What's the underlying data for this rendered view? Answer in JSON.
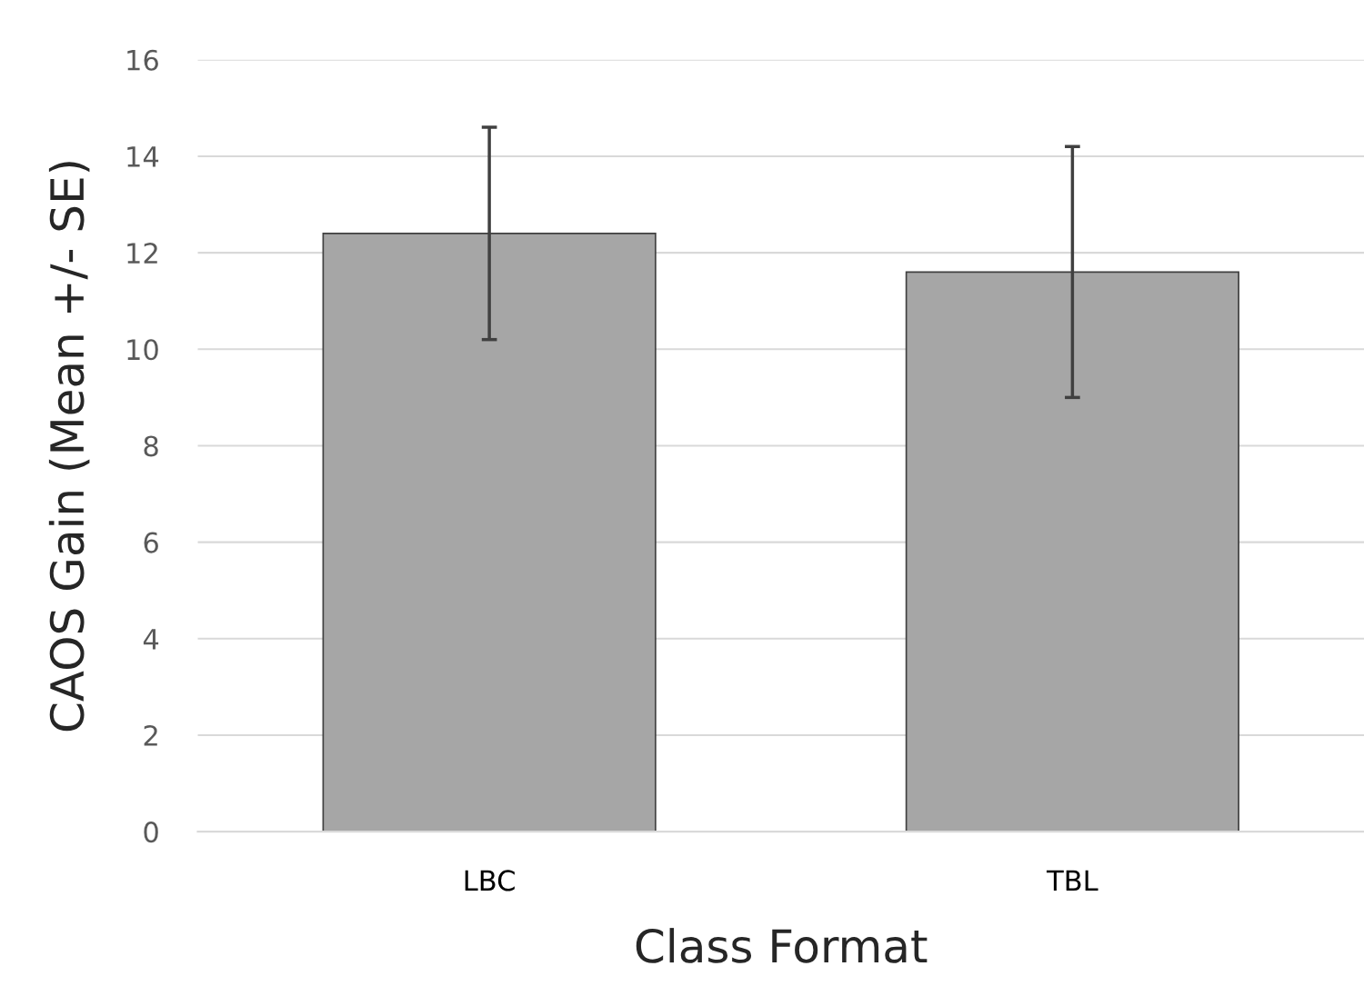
{
  "chart_data": {
    "type": "bar",
    "xlabel": "Class Format",
    "ylabel": "CAOS Gain (Mean +/- SE)",
    "categories": [
      "LBC",
      "TBL"
    ],
    "values": [
      12.4,
      11.6
    ],
    "errors": [
      2.2,
      2.6
    ],
    "color": "#a6a6a6",
    "ylim": [
      0,
      16
    ],
    "yticks": [
      0,
      2,
      4,
      6,
      8,
      10,
      12,
      14,
      16
    ],
    "grid": "y"
  }
}
